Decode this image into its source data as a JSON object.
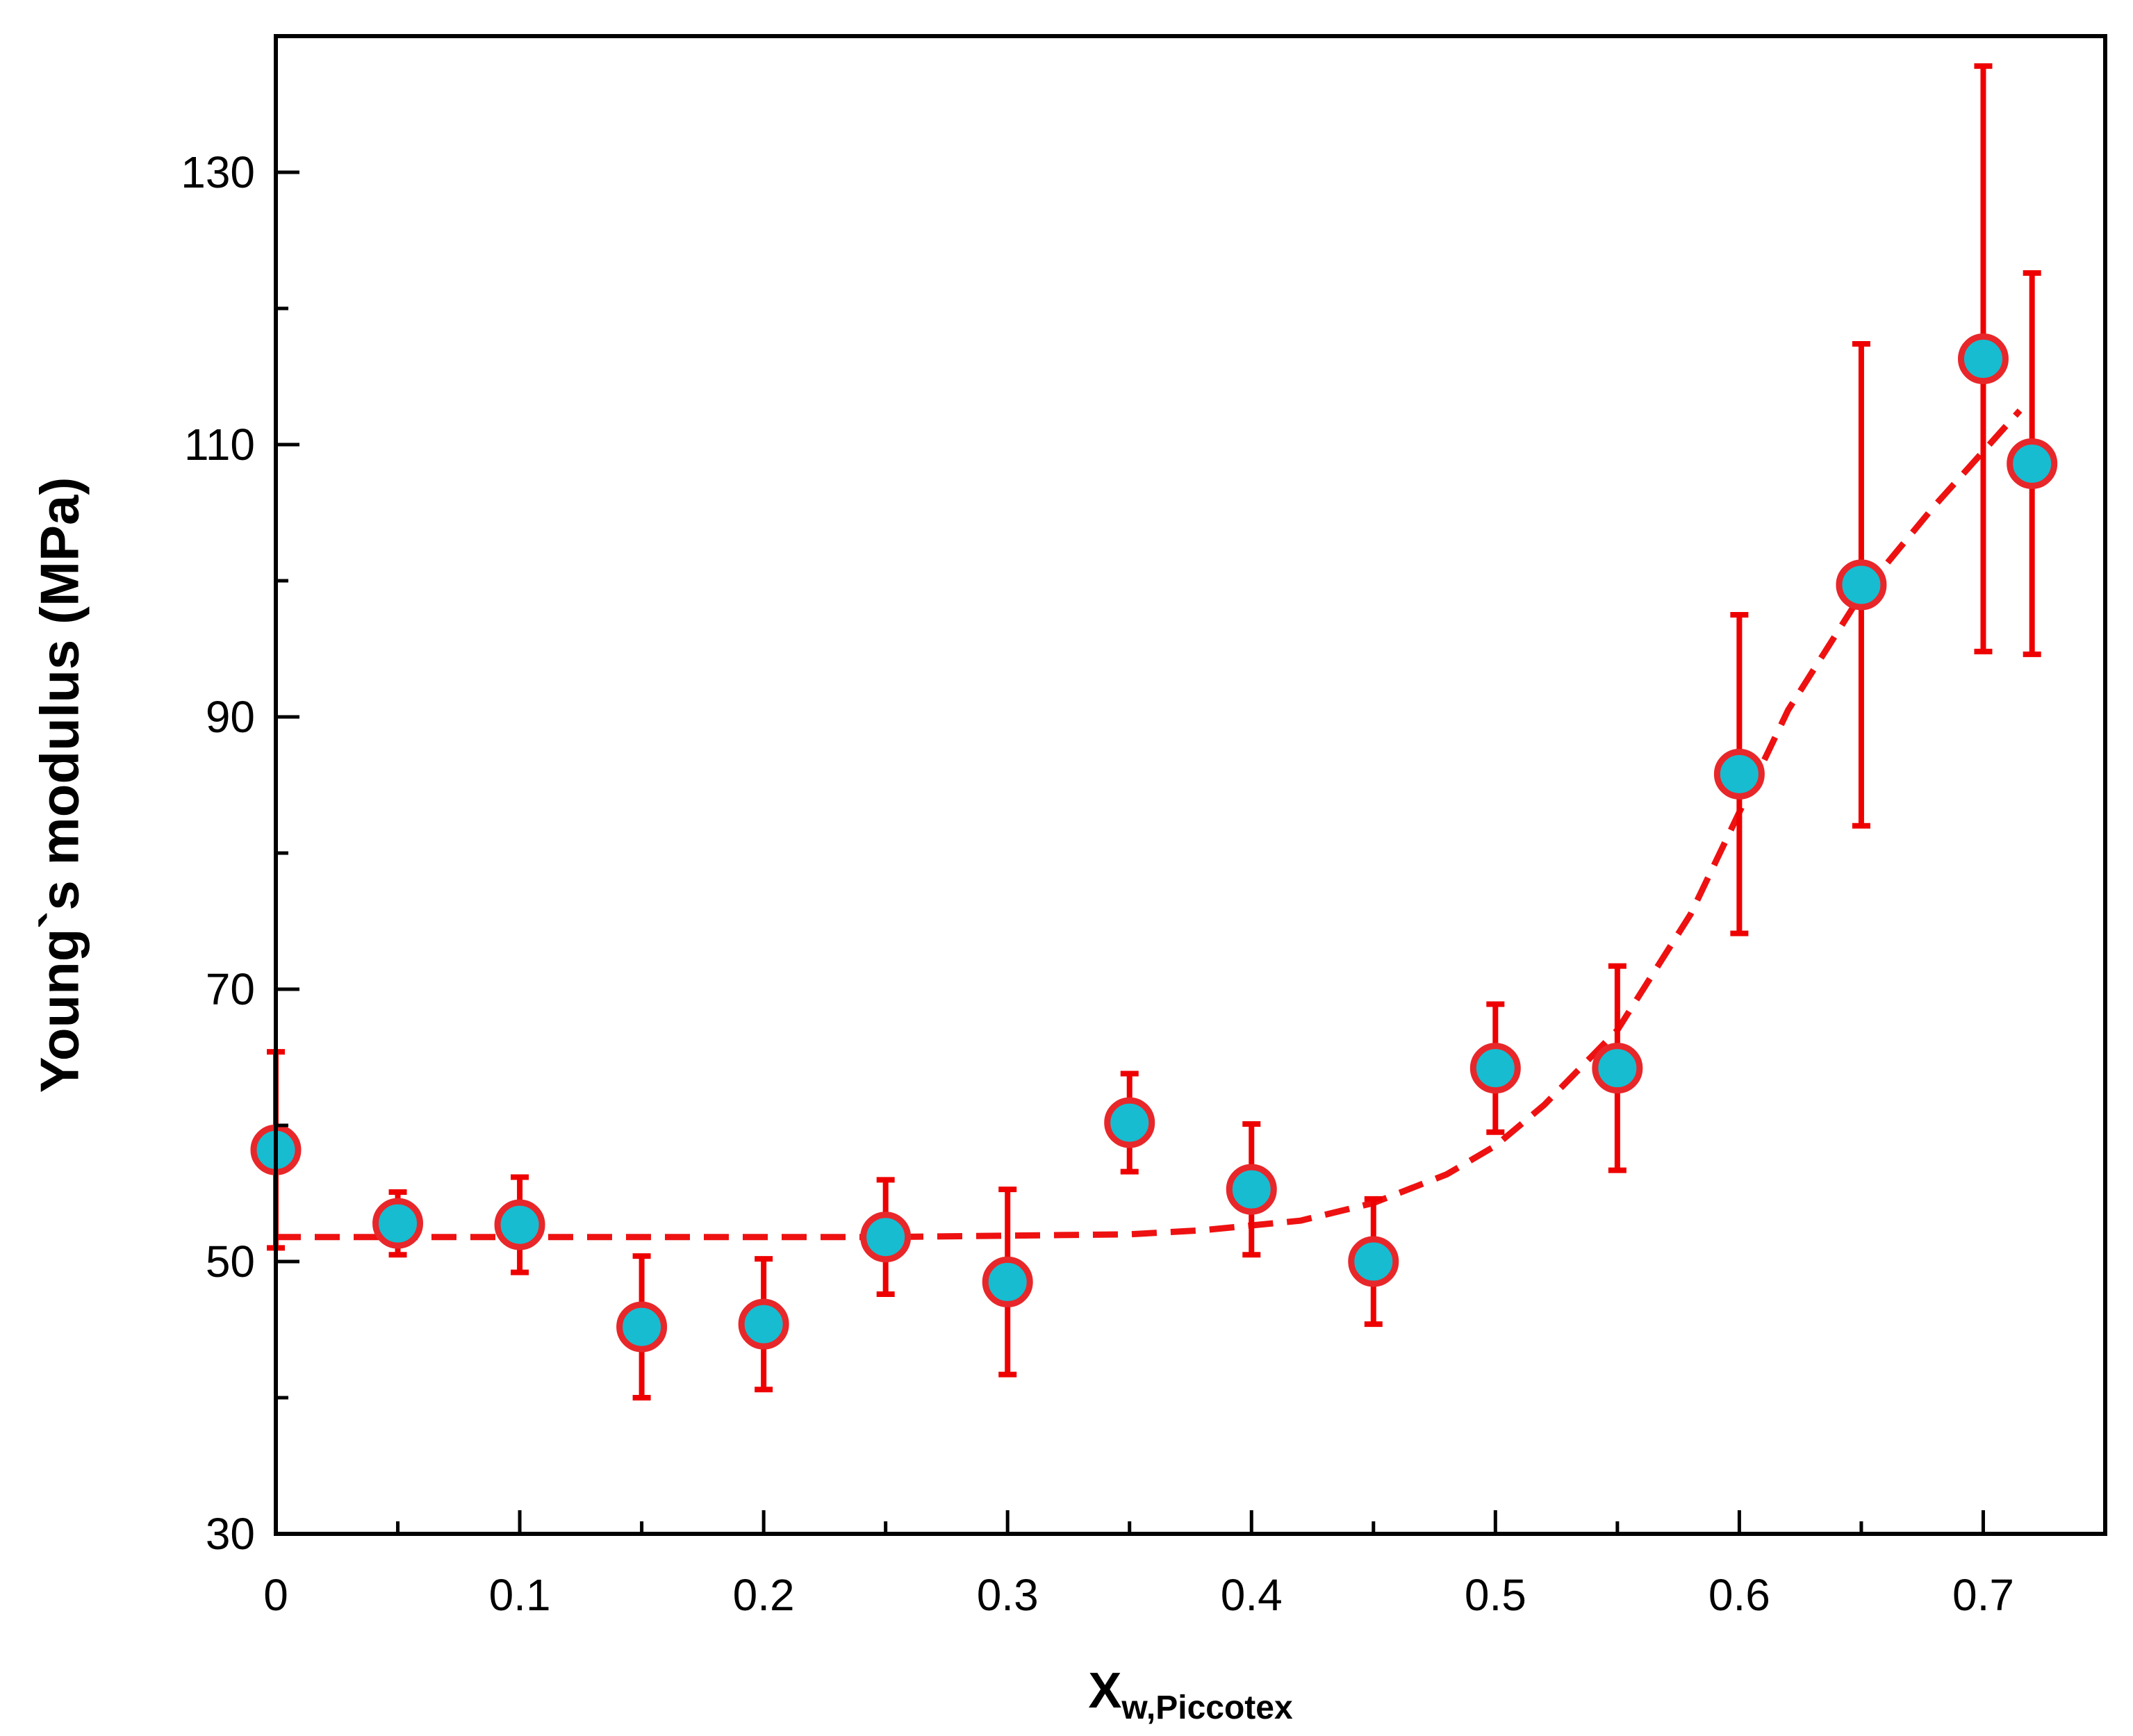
{
  "chart_data": {
    "type": "scatter",
    "xlabel_main": "X",
    "xlabel_sub": "w,Piccotex",
    "ylabel": "Young`s modulus (MPa)",
    "xlim": [
      0,
      0.75
    ],
    "ylim": [
      30,
      140
    ],
    "x_ticks": [
      0,
      0.1,
      0.2,
      0.3,
      0.4,
      0.5,
      0.6,
      0.7
    ],
    "x_tick_labels": [
      "0",
      "0.1",
      "0.2",
      "0.3",
      "0.4",
      "0.5",
      "0.6",
      "0.7"
    ],
    "x_minor_ticks": [
      0.05,
      0.15,
      0.25,
      0.35,
      0.45,
      0.55,
      0.65
    ],
    "y_ticks": [
      30,
      50,
      70,
      90,
      110,
      130
    ],
    "y_tick_labels": [
      "30",
      "50",
      "70",
      "90",
      "110",
      "130"
    ],
    "y_minor_ticks": [
      40,
      60,
      80,
      100,
      120
    ],
    "grid": false,
    "colors": {
      "marker_fill": "#17BCD0",
      "marker_edge": "#E8272A",
      "error_bar": "#EE0000",
      "fit_line": "#EE1111",
      "axis": "#000000"
    },
    "series": [
      {
        "marker": "circle",
        "x": [
          0.0,
          0.05,
          0.1,
          0.15,
          0.2,
          0.25,
          0.3,
          0.35,
          0.4,
          0.45,
          0.5,
          0.55,
          0.6,
          0.65,
          0.7,
          0.72
        ],
        "y": [
          58.2,
          52.8,
          52.7,
          45.2,
          45.4,
          51.8,
          48.5,
          60.2,
          55.3,
          50.0,
          64.2,
          64.2,
          85.8,
          99.7,
          116.3,
          108.6
        ],
        "yerr": [
          7.2,
          2.3,
          3.5,
          5.2,
          4.8,
          4.2,
          6.8,
          3.6,
          4.8,
          4.6,
          4.7,
          7.5,
          11.7,
          17.7,
          21.5,
          14.0
        ]
      }
    ],
    "fit_line": {
      "style": "dashed",
      "x": [
        0.0,
        0.05,
        0.1,
        0.15,
        0.2,
        0.25,
        0.3,
        0.35,
        0.38,
        0.42,
        0.45,
        0.48,
        0.5,
        0.52,
        0.55,
        0.58,
        0.6,
        0.62,
        0.65,
        0.68,
        0.7,
        0.715
      ],
      "y": [
        51.8,
        51.8,
        51.8,
        51.8,
        51.8,
        51.8,
        51.9,
        52.0,
        52.3,
        53.0,
        54.3,
        56.4,
        58.5,
        61.5,
        67.0,
        75.5,
        83.0,
        90.5,
        99.0,
        105.5,
        109.5,
        112.5
      ]
    }
  }
}
